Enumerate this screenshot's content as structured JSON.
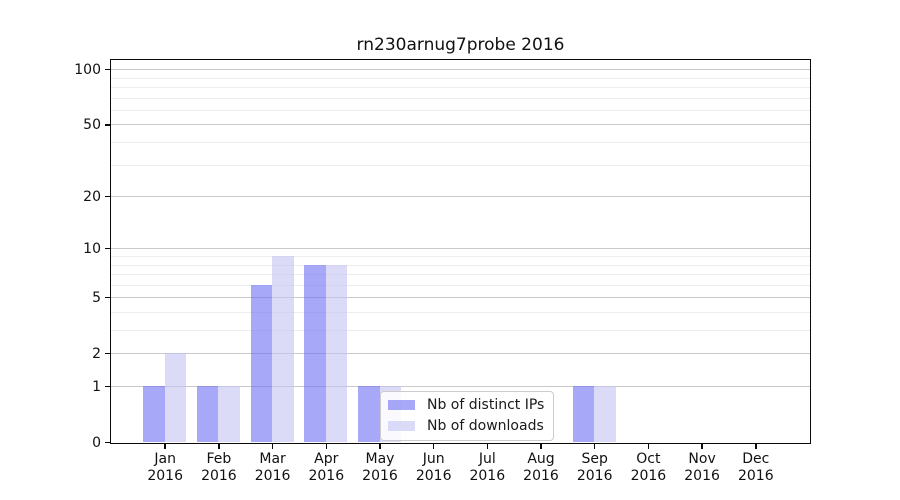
{
  "chart_data": {
    "type": "bar",
    "title": "rn230arnug7probe 2016",
    "categories": [
      "Jan",
      "Feb",
      "Mar",
      "Apr",
      "May",
      "Jun",
      "Jul",
      "Aug",
      "Sep",
      "Oct",
      "Nov",
      "Dec"
    ],
    "year_label": "2016",
    "series": [
      {
        "name": "Nb of distinct IPs",
        "color": "#6e6ef3",
        "alpha": 0.6,
        "values": [
          1,
          1,
          6,
          8,
          1,
          0,
          0,
          0,
          1,
          0,
          0,
          0
        ]
      },
      {
        "name": "Nb of downloads",
        "color": "#c3c3f3",
        "alpha": 0.6,
        "values": [
          2,
          1,
          9,
          8,
          1,
          0,
          0,
          0,
          1,
          0,
          0,
          0
        ]
      }
    ],
    "yscale": "log1p",
    "ylim": [
      0,
      112
    ],
    "yticks_major": [
      0,
      1,
      2,
      5,
      10,
      20,
      50,
      100
    ],
    "yticks_minor": [
      3,
      4,
      6,
      7,
      8,
      9,
      30,
      40,
      60,
      70,
      80,
      90
    ],
    "grid": "both",
    "legend_position": "lower center"
  },
  "colors": {
    "grid_major": "#c9c9c9",
    "grid_minor": "#ededed",
    "spine": "#0a0a0a",
    "background": "#ffffff"
  }
}
